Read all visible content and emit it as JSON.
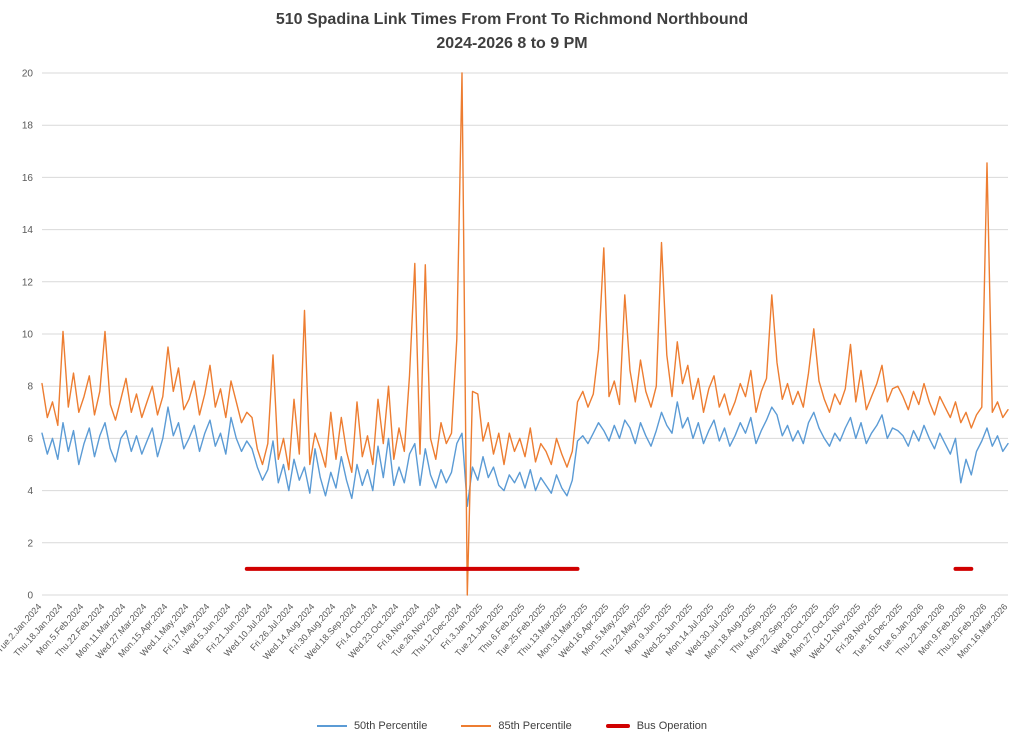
{
  "chart_data": {
    "type": "line",
    "title": "510 Spadina Link Times From Front To Richmond Northbound",
    "subtitle": "2024-2026 8 to 9 PM",
    "xlabel": "",
    "ylabel": "",
    "ylim": [
      0,
      20
    ],
    "ytick_step": 2,
    "grid": "horizontal",
    "legend_position": "bottom",
    "colors": {
      "axis_text": "#595959",
      "gridline": "#d9d9d9",
      "title": "#3f3f3f",
      "background": "#ffffff"
    },
    "points_per_tick_interval": 4,
    "x_tick_labels": [
      "Tue.2.Jan.2024",
      "Thu.18.Jan.2024",
      "Mon.5.Feb.2024",
      "Thu.22.Feb.2024",
      "Mon.11.Mar.2024",
      "Wed.27.Mar.2024",
      "Mon.15.Apr.2024",
      "Wed.1.May.2024",
      "Fri.17.May.2024",
      "Wed.5.Jun.2024",
      "Fri.21.Jun.2024",
      "Wed.10.Jul.2024",
      "Fri.26.Jul.2024",
      "Wed.14.Aug.2024",
      "Fri.30.Aug.2024",
      "Wed.18.Sep.2024",
      "Fri.4.Oct.2024",
      "Wed.23.Oct.2024",
      "Fri.8.Nov.2024",
      "Tue.26.Nov.2024",
      "Thu.12.Dec.2024",
      "Fri.3.Jan.2025",
      "Tue.21.Jan.2025",
      "Thu.6.Feb.2025",
      "Tue.25.Feb.2025",
      "Thu.13.Mar.2025",
      "Mon.31.Mar.2025",
      "Wed.16.Apr.2025",
      "Mon.5.May.2025",
      "Thu.22.May.2025",
      "Mon.9.Jun.2025",
      "Wed.25.Jun.2025",
      "Mon.14.Jul.2025",
      "Wed.30.Jul.2025",
      "Mon.18.Aug.2025",
      "Thu.4.Sep.2025",
      "Mon.22.Sep.2025",
      "Wed.8.Oct.2025",
      "Mon.27.Oct.2025",
      "Wed.12.Nov.2025",
      "Fri.28.Nov.2025",
      "Tue.16.Dec.2025",
      "Tue.6.Jan.2026",
      "Thu.22.Jan.2026",
      "Mon.9.Feb.2026",
      "Thu.26.Feb.2026",
      "Mon.16.Mar.2026"
    ],
    "series": [
      {
        "name": "50th Percentile",
        "color": "#5b9bd5",
        "values": [
          6.2,
          5.4,
          6.0,
          5.2,
          6.6,
          5.5,
          6.3,
          5.0,
          5.8,
          6.4,
          5.3,
          6.1,
          6.6,
          5.6,
          5.1,
          6.0,
          6.3,
          5.5,
          6.1,
          5.4,
          5.9,
          6.4,
          5.3,
          6.0,
          7.2,
          6.1,
          6.6,
          5.6,
          6.0,
          6.5,
          5.5,
          6.2,
          6.7,
          5.7,
          6.2,
          5.4,
          6.8,
          6.0,
          5.5,
          5.9,
          5.6,
          4.9,
          4.4,
          4.8,
          5.9,
          4.3,
          5.0,
          4.0,
          5.2,
          4.4,
          4.9,
          3.9,
          5.6,
          4.5,
          3.8,
          4.7,
          4.1,
          5.3,
          4.4,
          3.7,
          5.0,
          4.2,
          4.8,
          4.0,
          5.7,
          4.5,
          6.0,
          4.2,
          4.9,
          4.3,
          5.4,
          5.8,
          4.2,
          5.6,
          4.6,
          4.1,
          4.8,
          4.3,
          4.7,
          5.8,
          6.2,
          3.4,
          4.9,
          4.4,
          5.3,
          4.5,
          4.9,
          4.2,
          4.0,
          4.6,
          4.3,
          4.7,
          4.1,
          4.8,
          4.0,
          4.5,
          4.2,
          3.9,
          4.6,
          4.1,
          3.8,
          4.4,
          5.9,
          6.1,
          5.8,
          6.2,
          6.6,
          6.3,
          5.9,
          6.5,
          6.0,
          6.7,
          6.4,
          5.8,
          6.6,
          6.1,
          5.7,
          6.3,
          7.0,
          6.5,
          6.2,
          7.4,
          6.4,
          6.8,
          6.0,
          6.6,
          5.8,
          6.3,
          6.7,
          5.9,
          6.4,
          5.7,
          6.1,
          6.6,
          6.2,
          6.8,
          5.8,
          6.3,
          6.7,
          7.2,
          6.9,
          6.1,
          6.5,
          5.9,
          6.3,
          5.8,
          6.6,
          7.0,
          6.4,
          6.0,
          5.7,
          6.2,
          5.9,
          6.4,
          6.8,
          6.0,
          6.6,
          5.8,
          6.2,
          6.5,
          6.9,
          6.0,
          6.4,
          6.3,
          6.1,
          5.7,
          6.3,
          5.9,
          6.5,
          6.0,
          5.6,
          6.2,
          5.8,
          5.4,
          6.0,
          4.3,
          5.2,
          4.6,
          5.5,
          5.9,
          6.4,
          5.7,
          6.1,
          5.5,
          5.8
        ]
      },
      {
        "name": "85th Percentile",
        "color": "#ed7d31",
        "values": [
          8.1,
          6.8,
          7.4,
          6.5,
          10.1,
          7.2,
          8.5,
          7.0,
          7.6,
          8.4,
          6.9,
          7.8,
          10.1,
          7.3,
          6.7,
          7.5,
          8.3,
          7.0,
          7.7,
          6.8,
          7.4,
          8.0,
          6.9,
          7.6,
          9.5,
          7.8,
          8.7,
          7.1,
          7.5,
          8.2,
          6.9,
          7.7,
          8.8,
          7.2,
          7.9,
          6.8,
          8.2,
          7.4,
          6.6,
          7.0,
          6.8,
          5.6,
          5.0,
          5.8,
          9.2,
          5.2,
          6.0,
          4.8,
          7.5,
          5.4,
          10.9,
          5.0,
          6.2,
          5.6,
          4.9,
          7.0,
          5.2,
          6.8,
          5.5,
          4.7,
          7.4,
          5.3,
          6.1,
          5.0,
          7.5,
          5.8,
          8.0,
          5.2,
          6.4,
          5.5,
          8.4,
          12.7,
          5.4,
          12.65,
          6.0,
          5.2,
          6.6,
          5.8,
          6.2,
          9.8,
          20.0,
          0.0,
          7.8,
          7.7,
          5.9,
          6.6,
          5.4,
          6.2,
          5.0,
          6.2,
          5.5,
          6.0,
          5.3,
          6.4,
          5.1,
          5.8,
          5.5,
          5.0,
          6.0,
          5.4,
          4.9,
          5.5,
          7.4,
          7.8,
          7.2,
          7.7,
          9.4,
          13.3,
          7.6,
          8.2,
          7.3,
          11.5,
          8.6,
          7.4,
          9.0,
          7.8,
          7.2,
          8.0,
          13.5,
          9.2,
          7.6,
          9.7,
          8.1,
          8.8,
          7.5,
          8.3,
          7.0,
          7.9,
          8.4,
          7.2,
          7.7,
          6.9,
          7.4,
          8.1,
          7.6,
          8.6,
          7.0,
          7.8,
          8.3,
          11.5,
          8.9,
          7.5,
          8.1,
          7.3,
          7.8,
          7.2,
          8.5,
          10.2,
          8.2,
          7.5,
          7.0,
          7.7,
          7.3,
          7.9,
          9.6,
          7.4,
          8.6,
          7.1,
          7.6,
          8.1,
          8.8,
          7.4,
          7.9,
          8.0,
          7.6,
          7.1,
          7.8,
          7.3,
          8.1,
          7.4,
          6.9,
          7.6,
          7.2,
          6.8,
          7.4,
          6.6,
          7.0,
          6.4,
          6.9,
          7.2,
          16.55,
          7.0,
          7.4,
          6.8,
          7.1
        ]
      }
    ],
    "annotations": {
      "bus_operation": {
        "label": "Bus Operation",
        "color": "#d00000",
        "y_value": 1,
        "segments_point_index": [
          [
            39,
            102
          ],
          [
            174,
            177
          ]
        ],
        "segments_nearest_ticks": [
          [
            "Fri.21.Jun.2024",
            "Thu.13.Mar.2025"
          ],
          [
            "Thu.22.Jan.2026",
            "Mon.9.Feb.2026"
          ]
        ]
      }
    }
  },
  "legend": {
    "items": [
      {
        "label": "50th Percentile",
        "color": "#5b9bd5",
        "style": "line"
      },
      {
        "label": "85th Percentile",
        "color": "#ed7d31",
        "style": "line"
      },
      {
        "label": "Bus Operation",
        "color": "#d00000",
        "style": "thick-line"
      }
    ]
  }
}
